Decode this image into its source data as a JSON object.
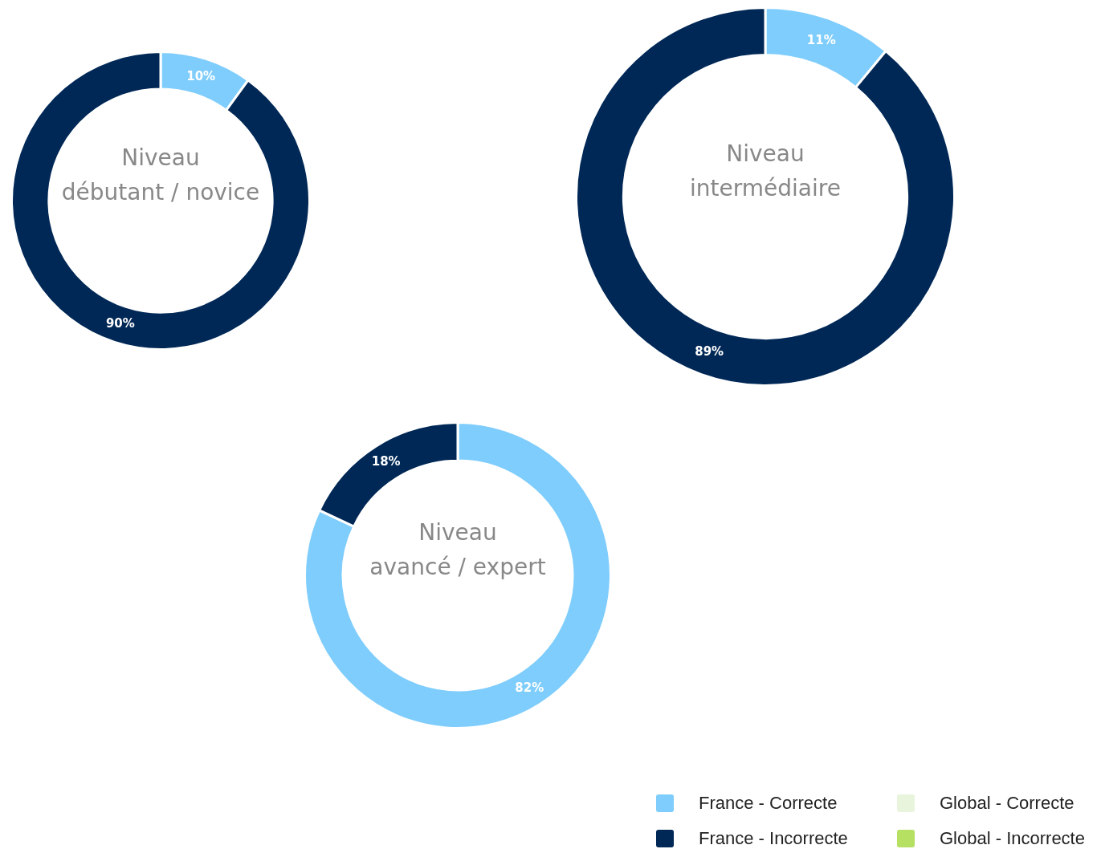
{
  "chart_data": [
    {
      "type": "donut",
      "title": "Niveau débutant / novice",
      "categories": [
        null,
        null
      ],
      "values": [
        10,
        90
      ],
      "value_labels": [
        "10%",
        "90%"
      ],
      "colors": [
        "#7fcdfc",
        "#002856"
      ]
    },
    {
      "type": "donut",
      "title": "Niveau intermédiaire",
      "categories": [
        null,
        null
      ],
      "values": [
        11,
        89
      ],
      "value_labels": [
        "11%",
        "89%"
      ],
      "colors": [
        "#7fcdfc",
        "#002856"
      ]
    },
    {
      "type": "donut",
      "title": "Niveau avancé / expert",
      "categories": [
        "France - Correcte",
        "France - Incorrecte",
        "Global - Correcte",
        "Global - Incorrecte"
      ],
      "values": [
        82,
        18,
        null,
        null
      ],
      "value_labels": [
        "82%",
        "18%",
        null,
        null
      ],
      "colors": [
        "#7fcdfc",
        "#002856",
        "#e8f5dc",
        "#b5e061"
      ],
      "legend": "bottom right"
    }
  ]
}
